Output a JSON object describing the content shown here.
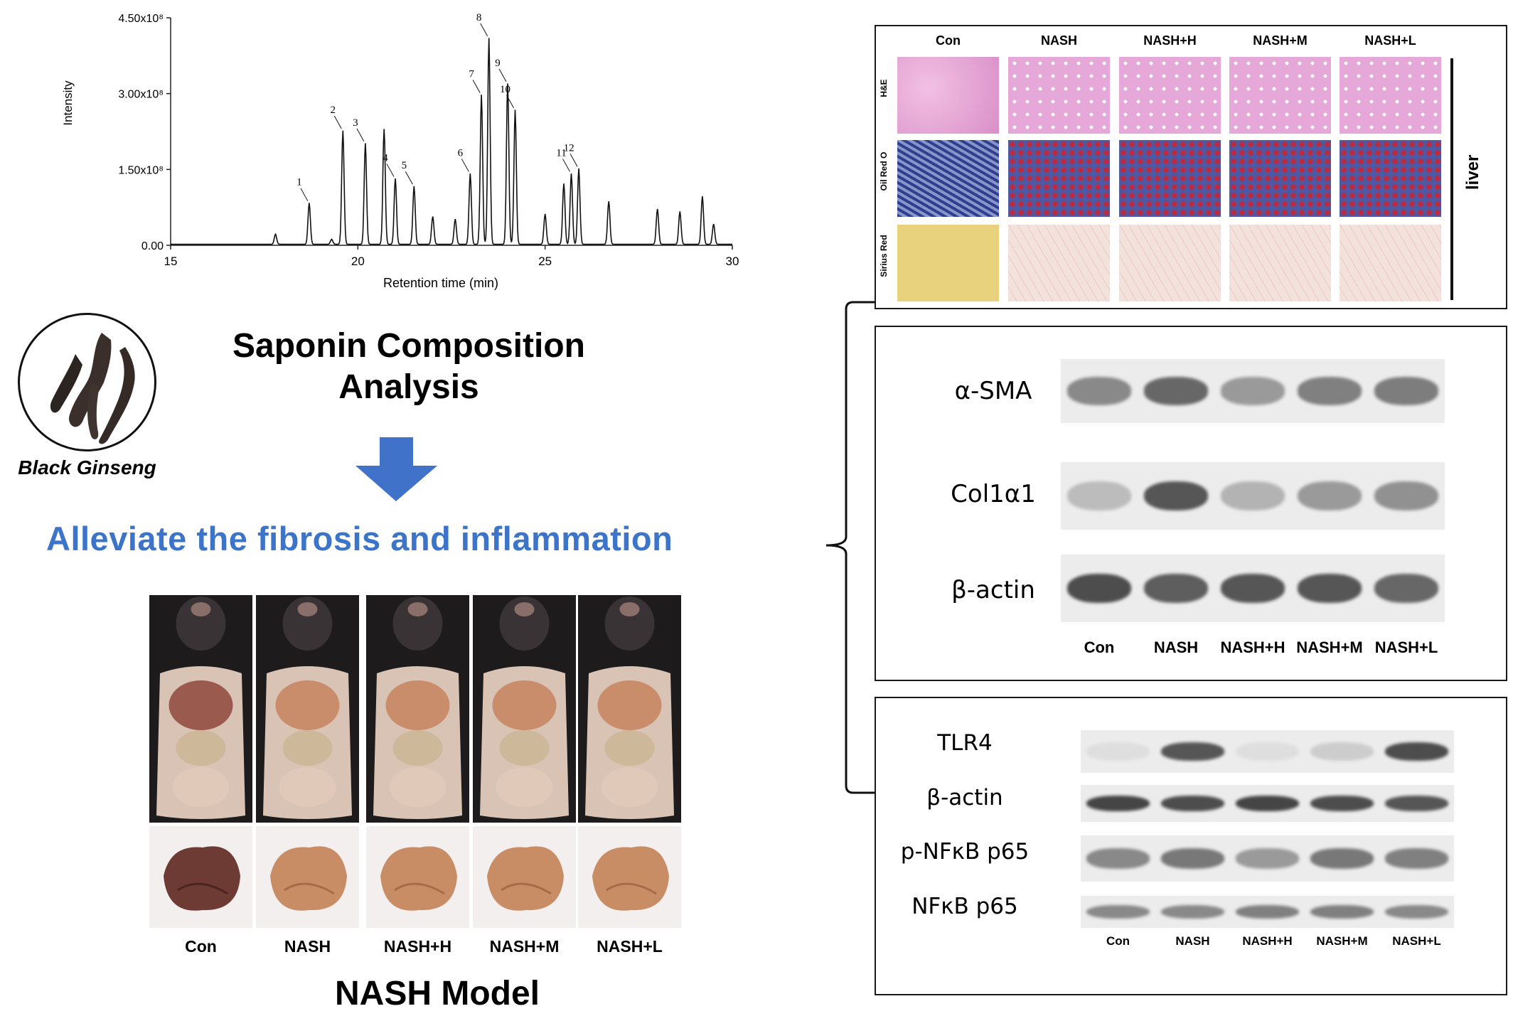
{
  "chromatogram": {
    "chart_data": {
      "type": "line",
      "xlabel": "Retention time (min)",
      "ylabel": "Intensity",
      "xlim": [
        15,
        30
      ],
      "ylim": [
        0,
        450000000
      ],
      "x_ticks": [
        "15",
        "20",
        "25",
        "30"
      ],
      "y_ticks": [
        "0.00",
        "1.50x10⁸",
        "3.00x10⁸",
        "4.50x10⁸"
      ],
      "peaks": [
        {
          "x": 17.8,
          "y": 20000000
        },
        {
          "x": 18.7,
          "y": 82000000,
          "label": "1"
        },
        {
          "x": 19.3,
          "y": 10000000
        },
        {
          "x": 19.6,
          "y": 225000000,
          "label": "2"
        },
        {
          "x": 20.2,
          "y": 200000000,
          "label": "3"
        },
        {
          "x": 20.7,
          "y": 228000000
        },
        {
          "x": 21.0,
          "y": 130000000,
          "label": "4"
        },
        {
          "x": 21.5,
          "y": 115000000,
          "label": "5"
        },
        {
          "x": 22.0,
          "y": 55000000
        },
        {
          "x": 22.6,
          "y": 50000000
        },
        {
          "x": 23.0,
          "y": 140000000,
          "label": "6"
        },
        {
          "x": 23.3,
          "y": 296000000,
          "label": "7"
        },
        {
          "x": 23.5,
          "y": 408000000,
          "label": "8"
        },
        {
          "x": 24.0,
          "y": 318000000,
          "label": "9"
        },
        {
          "x": 24.2,
          "y": 266000000,
          "label": "10"
        },
        {
          "x": 25.0,
          "y": 60000000
        },
        {
          "x": 25.5,
          "y": 120000000
        },
        {
          "x": 25.7,
          "y": 140000000,
          "label": "11"
        },
        {
          "x": 25.9,
          "y": 150000000,
          "label": "12"
        },
        {
          "x": 26.7,
          "y": 85000000
        },
        {
          "x": 28.0,
          "y": 70000000
        },
        {
          "x": 28.6,
          "y": 65000000
        },
        {
          "x": 29.2,
          "y": 95000000
        },
        {
          "x": 29.5,
          "y": 40000000
        }
      ]
    }
  },
  "ginseng": {
    "label": "Black Ginseng"
  },
  "saponin_title": {
    "line1": "Saponin Composition",
    "line2": "Analysis"
  },
  "alleviate": {
    "text": "Alleviate the fibrosis and inflammation",
    "color": "#3b74c9"
  },
  "arrow_color": "#3f72c8",
  "nash_model": {
    "title": "NASH Model",
    "groups": [
      "Con",
      "NASH",
      "NASH+H",
      "NASH+M",
      "NASH+L"
    ]
  },
  "histology": {
    "columns": [
      "Con",
      "NASH",
      "NASH+H",
      "NASH+M",
      "NASH+L"
    ],
    "rows": [
      "H&E",
      "Oil Red O",
      "Sirius Red"
    ],
    "side_label": "liver"
  },
  "wb1": {
    "proteins": [
      "α-SMA",
      "Col1α1",
      "β-actin"
    ],
    "lanes": [
      "Con",
      "NASH",
      "NASH+H",
      "NASH+M",
      "NASH+L"
    ],
    "intensity": [
      [
        0.55,
        0.75,
        0.45,
        0.6,
        0.62
      ],
      [
        0.25,
        0.85,
        0.3,
        0.45,
        0.5
      ],
      [
        0.9,
        0.8,
        0.85,
        0.85,
        0.75
      ]
    ]
  },
  "wb2": {
    "proteins": [
      "TLR4",
      "β-actin",
      "p-NFκB p65",
      "NFκB p65"
    ],
    "lanes": [
      "Con",
      "NASH",
      "NASH+H",
      "NASH+M",
      "NASH+L"
    ],
    "intensity": [
      [
        0.05,
        0.85,
        0.05,
        0.15,
        0.9
      ],
      [
        0.95,
        0.9,
        0.95,
        0.9,
        0.85
      ],
      [
        0.55,
        0.65,
        0.45,
        0.65,
        0.6
      ],
      [
        0.55,
        0.55,
        0.6,
        0.6,
        0.55
      ]
    ]
  }
}
